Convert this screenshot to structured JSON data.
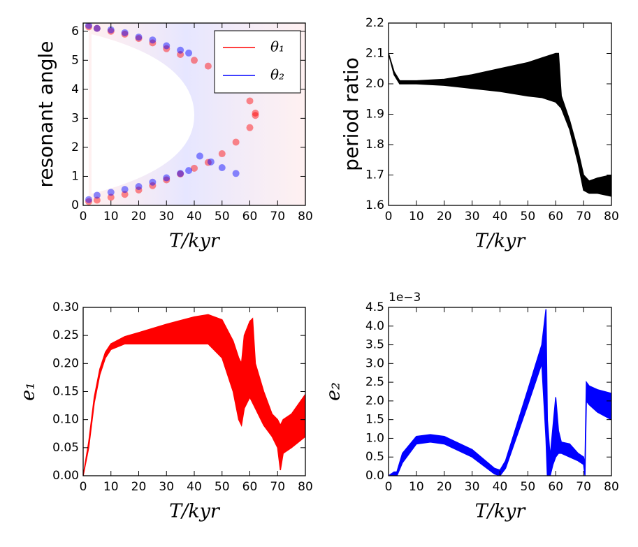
{
  "chart_data": [
    {
      "type": "scatter",
      "xlabel": "T/kyr",
      "ylabel": "resonant angle",
      "legend": "upper right",
      "xlim": [
        0,
        80
      ],
      "xticks": [
        0,
        10,
        20,
        30,
        40,
        50,
        60,
        70,
        80
      ],
      "ylim": [
        0,
        6.283
      ],
      "yticks": [
        0,
        1,
        2,
        3,
        4,
        5,
        6
      ],
      "series": [
        {
          "name": "θ₁",
          "color": "#ff0000",
          "x": [
            2,
            5,
            10,
            15,
            20,
            25,
            30,
            35,
            40,
            45,
            50,
            55,
            60,
            62,
            2,
            5,
            10,
            15,
            20,
            25,
            30,
            35,
            40,
            45,
            50,
            55,
            60,
            62
          ],
          "values": [
            6.15,
            6.1,
            6.0,
            5.9,
            5.75,
            5.6,
            5.4,
            5.2,
            5.0,
            4.8,
            4.5,
            4.1,
            3.6,
            3.1,
            0.13,
            0.18,
            0.28,
            0.38,
            0.53,
            0.68,
            0.88,
            1.08,
            1.28,
            1.48,
            1.78,
            2.18,
            2.68,
            3.18
          ]
        },
        {
          "name": "θ₂",
          "color": "#0000ff",
          "x": [
            2,
            5,
            10,
            15,
            20,
            25,
            30,
            35,
            38,
            2,
            5,
            10,
            15,
            20,
            25,
            30,
            35,
            38,
            42,
            46,
            50,
            55
          ],
          "values": [
            6.2,
            6.1,
            6.05,
            5.95,
            5.8,
            5.7,
            5.5,
            5.35,
            5.25,
            0.2,
            0.35,
            0.45,
            0.55,
            0.65,
            0.8,
            0.95,
            1.1,
            1.2,
            1.7,
            1.5,
            1.3,
            1.1
          ]
        }
      ]
    },
    {
      "type": "line",
      "xlabel": "T/kyr",
      "ylabel": "period ratio",
      "xlim": [
        0,
        80
      ],
      "xticks": [
        0,
        10,
        20,
        30,
        40,
        50,
        60,
        70,
        80
      ],
      "ylim": [
        1.6,
        2.2
      ],
      "yticks": [
        1.6,
        1.7,
        1.8,
        1.9,
        {
          "value": 2.0,
          "label": "2.0"
        },
        2.1,
        2.2
      ],
      "x": [
        0,
        2,
        4,
        10,
        20,
        30,
        40,
        50,
        55,
        60,
        61,
        62,
        65,
        68,
        70,
        72,
        75,
        80
      ],
      "series": [
        {
          "color": "#000000",
          "values": [
            2.1,
            2.04,
            2.01,
            2.01,
            2.015,
            2.03,
            2.05,
            2.07,
            2.085,
            2.1,
            2.1,
            1.96,
            1.88,
            1.78,
            1.7,
            1.68,
            1.69,
            1.7
          ]
        },
        {
          "color": "#000000",
          "values": [
            2.1,
            2.03,
            2.0,
            2.0,
            1.995,
            1.985,
            1.975,
            1.96,
            1.955,
            1.94,
            1.93,
            1.92,
            1.85,
            1.74,
            1.65,
            1.64,
            1.64,
            1.63
          ]
        }
      ]
    },
    {
      "type": "line",
      "xlabel": "T/kyr",
      "ylabel": "e₁",
      "xlim": [
        0,
        80
      ],
      "xticks": [
        0,
        10,
        20,
        30,
        40,
        50,
        60,
        70,
        80
      ],
      "ylim": [
        0,
        0.3
      ],
      "yticks": [
        {
          "value": 0,
          "label": "0.00"
        },
        0.05,
        {
          "value": 0.1,
          "label": "0.10"
        },
        0.15,
        {
          "value": 0.2,
          "label": "0.20"
        },
        0.25,
        {
          "value": 0.3,
          "label": "0.30"
        }
      ],
      "x": [
        0,
        2,
        4,
        6,
        8,
        10,
        15,
        20,
        30,
        40,
        45,
        50,
        54,
        56,
        57,
        58,
        60,
        61,
        62,
        65,
        68,
        70,
        71,
        72,
        75,
        80
      ],
      "series": [
        {
          "color": "#ff0000",
          "values": [
            0.0,
            0.06,
            0.14,
            0.19,
            0.22,
            0.235,
            0.248,
            0.255,
            0.27,
            0.283,
            0.287,
            0.278,
            0.24,
            0.21,
            0.2,
            0.25,
            0.275,
            0.28,
            0.2,
            0.15,
            0.11,
            0.1,
            0.09,
            0.1,
            0.11,
            0.145
          ]
        },
        {
          "color": "#ff0000",
          "values": [
            0.0,
            0.05,
            0.13,
            0.18,
            0.21,
            0.225,
            0.235,
            0.235,
            0.235,
            0.235,
            0.235,
            0.21,
            0.15,
            0.1,
            0.09,
            0.12,
            0.14,
            0.13,
            0.12,
            0.09,
            0.07,
            0.05,
            0.01,
            0.04,
            0.05,
            0.07
          ]
        }
      ]
    },
    {
      "type": "line",
      "xlabel": "T/kyr",
      "ylabel": "e₂",
      "offset_text": "1e−3",
      "xlim": [
        0,
        80
      ],
      "xticks": [
        0,
        10,
        20,
        30,
        40,
        50,
        60,
        70,
        80
      ],
      "ylim": [
        0,
        4.5
      ],
      "yticks": [
        {
          "value": 0,
          "label": "0.0"
        },
        0.5,
        {
          "value": 1,
          "label": "1.0"
        },
        1.5,
        {
          "value": 2,
          "label": "2.0"
        },
        2.5,
        {
          "value": 3,
          "label": "3.0"
        },
        3.5,
        {
          "value": 4,
          "label": "4.0"
        },
        4.5
      ],
      "x": [
        0,
        2,
        3,
        5,
        10,
        15,
        20,
        30,
        38,
        40,
        42,
        50,
        55,
        56.5,
        57,
        58,
        59,
        60,
        61,
        62,
        65,
        68,
        70,
        70.5,
        71,
        72,
        75,
        80
      ],
      "series": [
        {
          "color": "#0000ff",
          "values": [
            0,
            0.1,
            0.1,
            0.6,
            1.05,
            1.1,
            1.05,
            0.7,
            0.2,
            0.15,
            0.4,
            2.3,
            3.5,
            4.45,
            1.5,
            0.5,
            1.3,
            2.1,
            1.2,
            0.9,
            0.85,
            0.6,
            0.5,
            0.3,
            2.5,
            2.4,
            2.3,
            2.2
          ]
        },
        {
          "color": "#0000ff",
          "values": [
            0,
            0,
            0,
            0.35,
            0.85,
            0.9,
            0.85,
            0.5,
            0.05,
            0,
            0.2,
            1.9,
            3.0,
            1.0,
            0,
            0,
            0.3,
            0.5,
            0.6,
            0.6,
            0.5,
            0.4,
            0.3,
            0,
            2.0,
            1.9,
            1.7,
            1.5
          ]
        }
      ]
    }
  ]
}
